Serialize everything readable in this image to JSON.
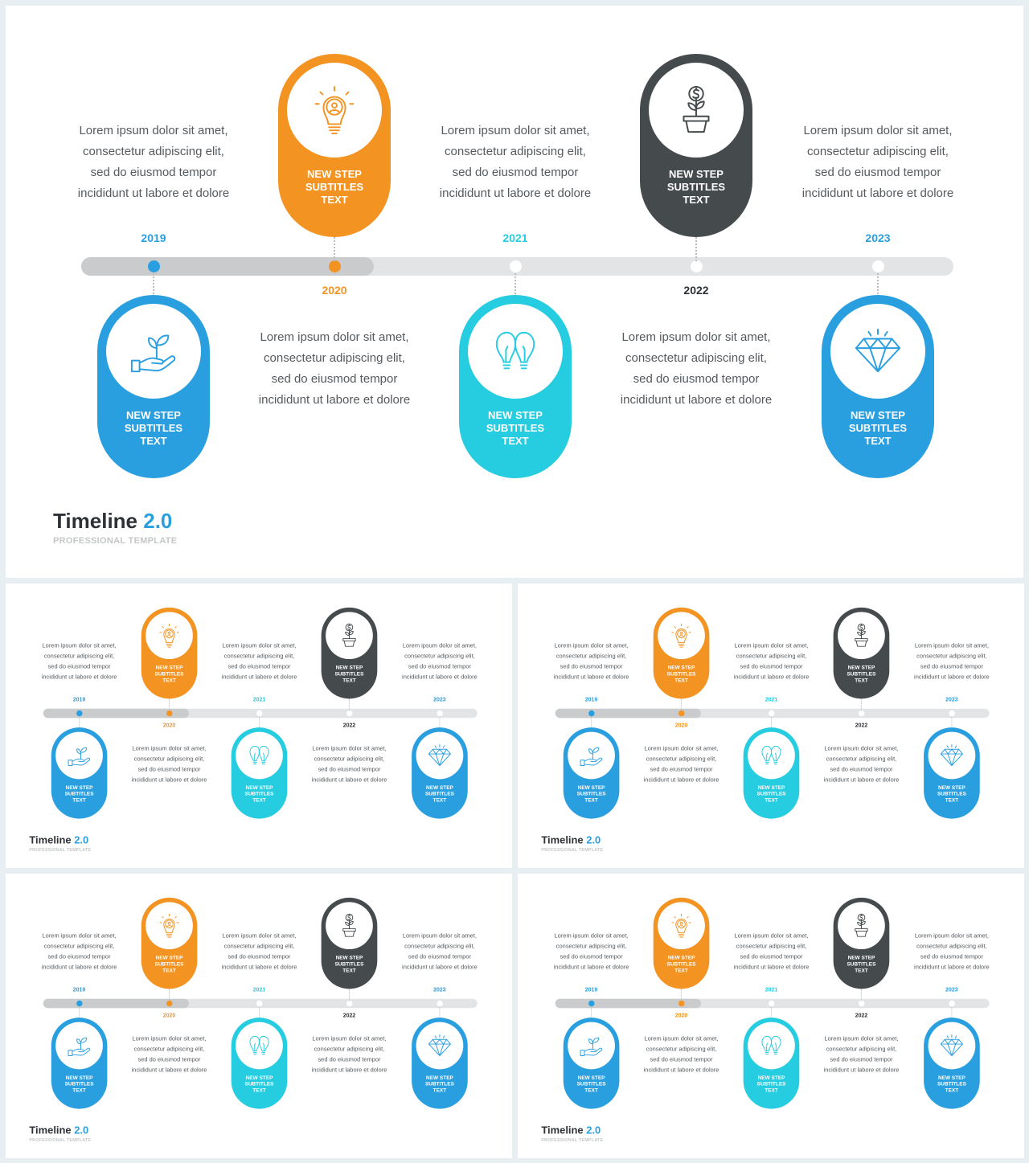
{
  "colors": {
    "blue": "#2a9fe0",
    "orange": "#f39322",
    "dark": "#454a4c",
    "cyan": "#26cce0",
    "track": "#e2e4e5",
    "track_progress": "#c9cbcd",
    "text": "#555a5e"
  },
  "slide": {
    "title_main": "Timeline",
    "title_accent": "2.0",
    "subtitle": "PROFESSIONAL TEMPLATE",
    "steps": [
      {
        "year": "2019",
        "label": "NEW STEP\nSUBTITLES\nTEXT",
        "icon": "hand-plant-icon",
        "color": "#2a9fe0",
        "position": "bottom",
        "text": "Lorem ipsum dolor sit amet,\nconsectetur adipiscing elit,\nsed do eiusmod tempor\nincididunt ut labore et dolore"
      },
      {
        "year": "2020",
        "label": "NEW STEP\nSUBTITLES\nTEXT",
        "icon": "lightbulb-person-icon",
        "color": "#f39322",
        "position": "top",
        "text": "Lorem ipsum dolor sit amet,\nconsectetur adipiscing elit,\nsed do eiusmod tempor\nincididunt ut labore et dolore"
      },
      {
        "year": "2021",
        "label": "NEW STEP\nSUBTITLES\nTEXT",
        "icon": "double-lightbulb-icon",
        "color": "#26cce0",
        "position": "bottom",
        "text": "Lorem ipsum dolor sit amet,\nconsectetur adipiscing elit,\nsed do eiusmod tempor\nincididunt ut labore et dolore"
      },
      {
        "year": "2022",
        "label": "NEW STEP\nSUBTITLES\nTEXT",
        "icon": "money-plant-icon",
        "color": "#454a4c",
        "position": "top",
        "text": "Lorem ipsum dolor sit amet,\nconsectetur adipiscing elit,\nsed do eiusmod tempor\nincididunt ut labore et dolore"
      },
      {
        "year": "2023",
        "label": "NEW STEP\nSUBTITLES\nTEXT",
        "icon": "diamond-icon",
        "color": "#2a9fe0",
        "position": "bottom",
        "text": "Lorem ipsum dolor sit amet,\nconsectetur adipiscing elit,\nsed do eiusmod tempor\nincididunt ut labore et dolore"
      }
    ]
  },
  "thumbnails": [
    {
      "name": "thumbnail-1"
    },
    {
      "name": "thumbnail-2"
    },
    {
      "name": "thumbnail-3"
    },
    {
      "name": "thumbnail-4"
    }
  ]
}
